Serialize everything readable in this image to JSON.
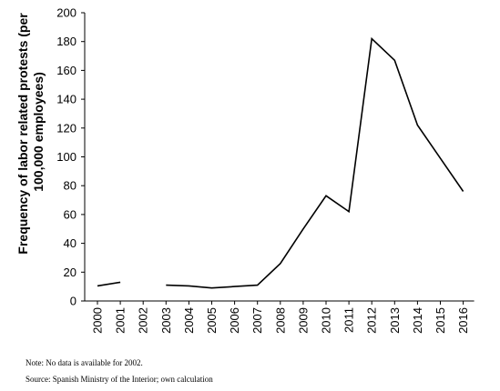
{
  "chart_data": {
    "type": "line",
    "title": "",
    "xlabel": "",
    "ylabel": "Frequency of labor related protests (per 100,000 employees)",
    "ylabel_lines": [
      "Frequency of labor related protests (per",
      "100,000 employees)"
    ],
    "categories": [
      "2000",
      "2001",
      "2002",
      "2003",
      "2004",
      "2005",
      "2006",
      "2007",
      "2008",
      "2009",
      "2010",
      "2011",
      "2012",
      "2013",
      "2014",
      "2015",
      "2016"
    ],
    "series": [
      {
        "values": [
          10.5,
          13,
          null,
          11,
          10.5,
          9,
          10,
          11,
          26,
          50,
          73,
          62,
          182,
          167,
          122,
          99,
          76
        ]
      }
    ],
    "ylim": [
      0,
      200
    ],
    "yticks": [
      0,
      20,
      40,
      60,
      80,
      100,
      120,
      140,
      160,
      180,
      200
    ],
    "grid": false,
    "color": "#000000"
  },
  "notes": {
    "note": "Note: No data is available for 2002.",
    "source": "Source: Spanish Ministry of the Interior; own calculation"
  }
}
